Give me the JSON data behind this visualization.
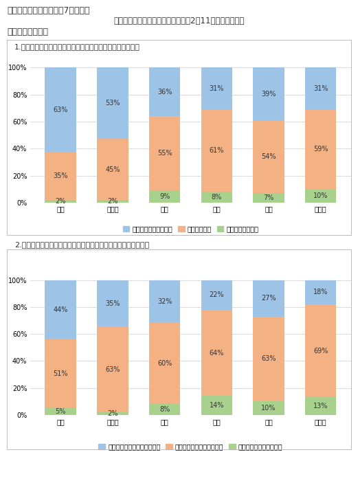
{
  "title_line1": "行政区別調査結果　　（7）グラフ",
  "title_line2": "嘉手納基地被害聴き取り調査（令和2年11月　嘉手納町）",
  "section_label": "《騒音について》",
  "q1_label": "1.　航空機騒音のうるささについてどのように感じますか。",
  "q2_label": "2.　あなたの生活は基地の騒音によって被害を受けていますか。",
  "categories": [
    "東区",
    "中央区",
    "北区",
    "南区",
    "西区",
    "西浜区"
  ],
  "q1_data": {
    "bottom": [
      2,
      2,
      9,
      8,
      7,
      10
    ],
    "middle": [
      35,
      45,
      55,
      61,
      54,
      59
    ],
    "top": [
      63,
      53,
      36,
      31,
      39,
      31
    ],
    "labels_bottom": [
      "2%",
      "2%",
      "9%",
      "8%",
      "7%",
      "10%"
    ],
    "labels_middle": [
      "35%",
      "45%",
      "55%",
      "61%",
      "54%",
      "59%"
    ],
    "labels_top": [
      "63%",
      "53%",
      "36%",
      "31%",
      "39%",
      "31%"
    ],
    "legend": [
      "ア　たいへんうるさい",
      "イ　うるさい",
      "ウ　うるさくない"
    ],
    "colors": [
      "#9DC3E6",
      "#F4B183",
      "#A9D18E"
    ]
  },
  "q2_data": {
    "bottom": [
      5,
      2,
      8,
      14,
      10,
      13
    ],
    "middle": [
      51,
      63,
      60,
      64,
      63,
      69
    ],
    "top": [
      44,
      35,
      32,
      22,
      27,
      18
    ],
    "labels_bottom": [
      "5%",
      "2%",
      "8%",
      "14%",
      "10%",
      "13%"
    ],
    "labels_middle": [
      "51%",
      "63%",
      "60%",
      "64%",
      "63%",
      "69%"
    ],
    "labels_top": [
      "44%",
      "35%",
      "32%",
      "22%",
      "27%",
      "18%"
    ],
    "legend": [
      "ア　非常に被害を受けている",
      "イ　少し被害を受けている",
      "ウ　被害を受けていない"
    ],
    "colors": [
      "#9DC3E6",
      "#F4B183",
      "#A9D18E"
    ]
  },
  "bg_color": "#FFFFFF",
  "text_color": "#333333",
  "font_size_title": 9,
  "font_size_label": 8,
  "font_size_bar": 7,
  "font_size_axis": 7,
  "font_size_legend": 7
}
